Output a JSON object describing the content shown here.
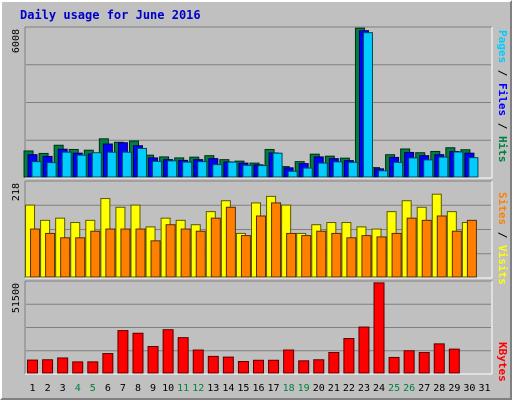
{
  "chart_data": {
    "type": "bar",
    "title": "Daily usage for June 2016",
    "categories": [
      "1",
      "2",
      "3",
      "4",
      "5",
      "6",
      "7",
      "8",
      "9",
      "10",
      "11",
      "12",
      "13",
      "14",
      "15",
      "16",
      "17",
      "18",
      "19",
      "20",
      "21",
      "22",
      "23",
      "24",
      "25",
      "26",
      "27",
      "28",
      "29",
      "30",
      "31"
    ],
    "weekend_days": [
      "4",
      "5",
      "11",
      "12",
      "18",
      "19",
      "25",
      "26"
    ],
    "panels": [
      {
        "name": "hits_files_pages",
        "max_label": "6008",
        "ymax": 6008,
        "right_label": [
          "Pages",
          "Files",
          "Hits"
        ],
        "right_label_colors": [
          "#00ccff",
          "#0000ff",
          "#008040"
        ],
        "series": [
          {
            "name": "Hits",
            "color": "#008040",
            "values": [
              1050,
              950,
              1280,
              1110,
              1080,
              1540,
              1400,
              1450,
              880,
              810,
              770,
              800,
              860,
              700,
              640,
              560,
              1110,
              420,
              620,
              920,
              840,
              760,
              6000,
              380,
              900,
              1130,
              980,
              1030,
              1180,
              1100,
              0
            ]
          },
          {
            "name": "Files",
            "color": "#0000ff",
            "values": [
              900,
              830,
              1120,
              960,
              930,
              1330,
              1380,
              1260,
              770,
              700,
              670,
              700,
              740,
              610,
              560,
              490,
              970,
              370,
              540,
              810,
              740,
              660,
              5900,
              330,
              790,
              990,
              860,
              900,
              1030,
              960,
              0
            ]
          },
          {
            "name": "Pages",
            "color": "#00ccff",
            "values": [
              620,
              580,
              1000,
              880,
              980,
              1000,
              1000,
              1150,
              630,
              650,
              600,
              620,
              500,
              600,
              470,
              460,
              960,
              230,
              360,
              560,
              610,
              590,
              5820,
              250,
              590,
              770,
              690,
              800,
              1010,
              780,
              0
            ]
          }
        ]
      },
      {
        "name": "visits_sites",
        "max_label": "218",
        "ymax": 218,
        "right_label": [
          "Sites",
          "Visits"
        ],
        "right_label_colors": [
          "#ff8000",
          "#ffff00"
        ],
        "series": [
          {
            "name": "Visits",
            "color": "#ffff00",
            "values": [
              165,
              130,
              135,
              125,
              130,
              180,
              160,
              165,
              115,
              135,
              130,
              120,
              150,
              175,
              100,
              170,
              185,
              165,
              100,
              120,
              125,
              125,
              115,
              110,
              150,
              175,
              160,
              190,
              150,
              125,
              0
            ]
          },
          {
            "name": "Sites",
            "color": "#ff8000",
            "values": [
              110,
              100,
              90,
              90,
              105,
              110,
              110,
              110,
              83,
              120,
              110,
              105,
              135,
              160,
              95,
              140,
              170,
              100,
              95,
              105,
              100,
              90,
              95,
              92,
              100,
              135,
              130,
              140,
              105,
              130,
              0
            ]
          }
        ]
      },
      {
        "name": "kbytes",
        "max_label": "51500",
        "ymax": 51500,
        "right_label": [
          "KBytes"
        ],
        "right_label_colors": [
          "#ff0000"
        ],
        "series": [
          {
            "name": "KBytes",
            "color": "#ff0000",
            "values": [
              7300,
              7500,
              8500,
              6300,
              6300,
              11000,
              24000,
              22500,
              15000,
              24500,
              20000,
              13000,
              9400,
              9000,
              6500,
              7200,
              7200,
              13000,
              6900,
              7500,
              11600,
              19500,
              26000,
              51000,
              8800,
              12600,
              11600,
              16500,
              13500,
              0,
              0
            ]
          }
        ]
      }
    ]
  }
}
